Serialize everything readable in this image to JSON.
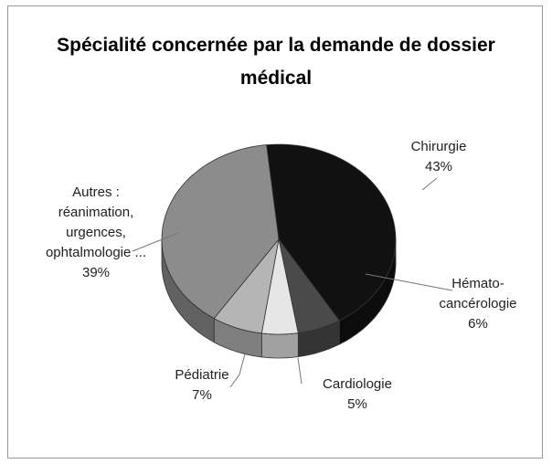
{
  "chart_data": {
    "type": "pie3d",
    "title": "Spécialité concernée par la demande de dossier médical",
    "categories": [
      "Chirurgie",
      "Hémato-cancérologie",
      "Cardiologie",
      "Pédiatrie",
      "Autres : réanimation, urgences, ophtalmologie ..."
    ],
    "values": [
      43,
      6,
      5,
      7,
      39
    ],
    "value_labels": [
      "43%",
      "6%",
      "5%",
      "7%",
      "39%"
    ],
    "colors": [
      "#111111",
      "#4a4a4a",
      "#e6e6e6",
      "#b5b5b5",
      "#8c8c8c"
    ]
  }
}
